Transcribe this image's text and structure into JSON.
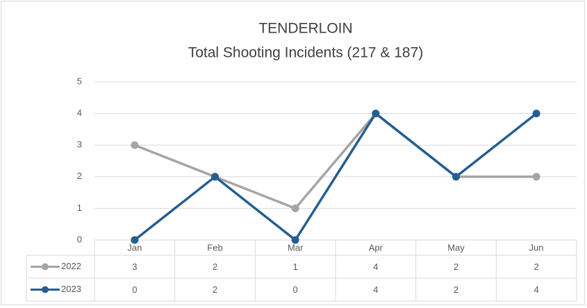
{
  "chart_data": {
    "type": "line",
    "title": "TENDERLOIN",
    "subtitle": "Total Shooting Incidents (217 & 187)",
    "categories": [
      "Jan",
      "Feb",
      "Mar",
      "Apr",
      "May",
      "Jun"
    ],
    "series": [
      {
        "name": "2022",
        "color": "#a5a5a5",
        "values": [
          3,
          2,
          1,
          4,
          2,
          2
        ]
      },
      {
        "name": "2023",
        "color": "#255e91",
        "values": [
          0,
          2,
          0,
          4,
          2,
          4
        ]
      }
    ],
    "ylim": [
      0,
      5
    ],
    "yticks": [
      0,
      1,
      2,
      3,
      4,
      5
    ],
    "grid": true,
    "data_table": true
  }
}
